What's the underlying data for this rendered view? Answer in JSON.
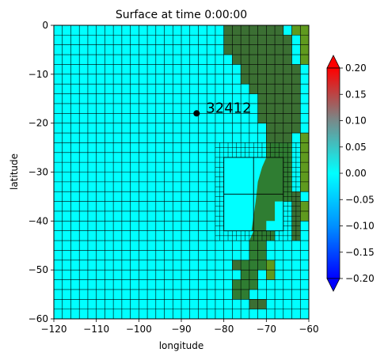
{
  "chart_data": {
    "type": "heatmap",
    "title": "Surface at time 0:00:00",
    "xlabel": "longitude",
    "ylabel": "latitude",
    "xlim": [
      -120,
      -60
    ],
    "ylim": [
      -60,
      0
    ],
    "x_ticks": [
      "−120",
      "−110",
      "−100",
      "−90",
      "−80",
      "−70",
      "−60"
    ],
    "x_tick_values": [
      -120,
      -110,
      -100,
      -90,
      -80,
      -70,
      -60
    ],
    "y_ticks": [
      "0",
      "−10",
      "−20",
      "−30",
      "−40",
      "−50",
      "−60"
    ],
    "y_tick_values": [
      0,
      -10,
      -20,
      -30,
      -40,
      -50,
      -60
    ],
    "grid_resolution_deg": 2,
    "refined_patch": {
      "lon": [
        -82,
        -62
      ],
      "lat": [
        -44,
        -24
      ],
      "resolution_deg": 1
    },
    "fine_patch": {
      "lon": [
        -80,
        -66
      ],
      "lat": [
        -42,
        -27
      ],
      "resolution_deg": 7
    },
    "gauge": {
      "label": "32412",
      "lon": -86.4,
      "lat": -18.0
    },
    "colorbar": {
      "min": -0.2,
      "max": 0.2,
      "ticks": [
        "0.20",
        "0.15",
        "0.10",
        "0.05",
        "0.00",
        "−0.05",
        "−0.10",
        "−0.15",
        "−0.20"
      ],
      "tick_values": [
        0.2,
        0.15,
        0.1,
        0.05,
        0.0,
        -0.05,
        -0.1,
        -0.15,
        -0.2
      ],
      "extend": "both",
      "colors": {
        "low": "#0000ff",
        "mid_low": "#00b4ff",
        "zero": "#00ffff",
        "mid_high": "#6e8f8f",
        "high": "#ff0000"
      }
    },
    "surface_value_ocean": 0.0,
    "land_colors": {
      "green": "#2f7d32",
      "dark_green": "#3b6f33",
      "olive": "#5f9a1e"
    }
  }
}
